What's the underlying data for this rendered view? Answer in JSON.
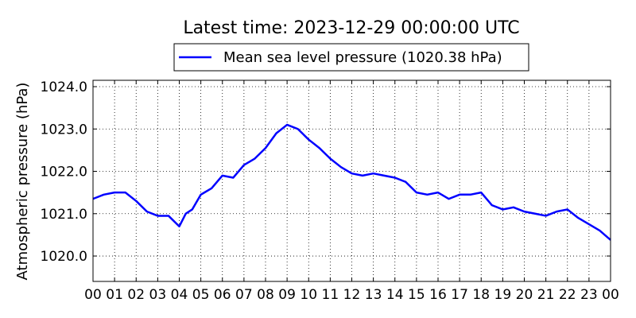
{
  "chart_data": {
    "type": "line",
    "title": "Latest time: 2023-12-29 00:00:00 UTC",
    "xlabel": "",
    "ylabel": "Atmospheric pressure (hPa)",
    "x_tick_labels": [
      "00",
      "01",
      "02",
      "03",
      "04",
      "05",
      "06",
      "07",
      "08",
      "09",
      "10",
      "11",
      "12",
      "13",
      "14",
      "15",
      "16",
      "17",
      "18",
      "19",
      "20",
      "21",
      "22",
      "23",
      "00"
    ],
    "xlim": [
      0,
      24
    ],
    "ylim": [
      1019.4,
      1024.15
    ],
    "y_ticks": [
      1020.0,
      1021.0,
      1022.0,
      1023.0,
      1024.0
    ],
    "y_tick_labels": [
      "1020.0",
      "1021.0",
      "1022.0",
      "1023.0",
      "1024.0"
    ],
    "grid": true,
    "legend_position": "top-center",
    "series": [
      {
        "name": "Mean sea level pressure (1020.38 hPa)",
        "color": "#0000ff",
        "x": [
          0,
          0.5,
          1,
          1.5,
          2,
          2.5,
          3,
          3.5,
          4,
          4.3,
          4.6,
          5,
          5.5,
          6,
          6.5,
          7,
          7.5,
          8,
          8.5,
          9,
          9.5,
          10,
          10.5,
          11,
          11.5,
          12,
          12.5,
          13,
          13.5,
          14,
          14.5,
          15,
          15.5,
          16,
          16.5,
          17,
          17.5,
          18,
          18.5,
          19,
          19.5,
          20,
          20.5,
          21,
          21.5,
          22,
          22.5,
          23,
          23.5,
          24
        ],
        "values": [
          1021.35,
          1021.45,
          1021.5,
          1021.5,
          1021.3,
          1021.05,
          1020.95,
          1020.95,
          1020.7,
          1021.0,
          1021.1,
          1021.45,
          1021.6,
          1021.9,
          1021.85,
          1022.15,
          1022.3,
          1022.55,
          1022.9,
          1023.1,
          1023.0,
          1022.75,
          1022.55,
          1022.3,
          1022.1,
          1021.95,
          1021.9,
          1021.95,
          1021.9,
          1021.85,
          1021.75,
          1021.5,
          1021.45,
          1021.5,
          1021.35,
          1021.45,
          1021.45,
          1021.5,
          1021.2,
          1021.1,
          1021.15,
          1021.05,
          1021.0,
          1020.95,
          1021.05,
          1021.1,
          1020.9,
          1020.75,
          1020.6,
          1020.38
        ]
      }
    ]
  }
}
